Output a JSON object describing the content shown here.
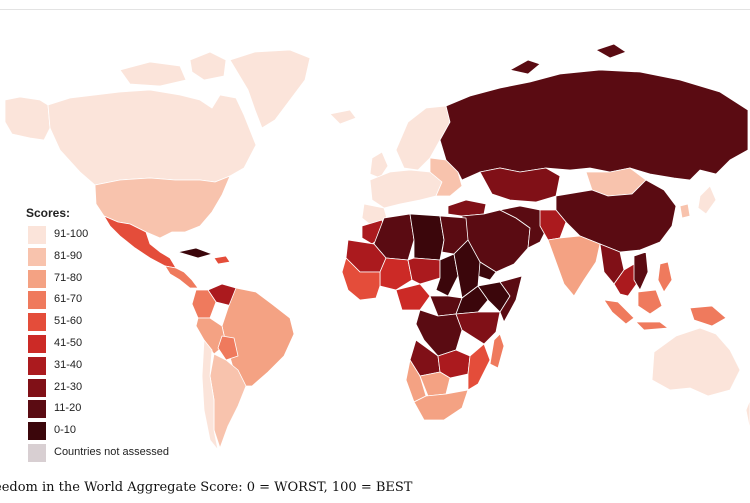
{
  "legend": {
    "title": "Scores:",
    "items": [
      {
        "label": "91-100",
        "color": "#fbe4da"
      },
      {
        "label": "81-90",
        "color": "#f8c3ad"
      },
      {
        "label": "71-80",
        "color": "#f4a283"
      },
      {
        "label": "61-70",
        "color": "#ef7a5d"
      },
      {
        "label": "51-60",
        "color": "#e44d3a"
      },
      {
        "label": "41-50",
        "color": "#cc2a26"
      },
      {
        "label": "31-40",
        "color": "#ab1a1e"
      },
      {
        "label": "21-30",
        "color": "#801017"
      },
      {
        "label": "11-20",
        "color": "#5a0b12"
      },
      {
        "label": "0-10",
        "color": "#3b060b"
      },
      {
        "label": "Countries not assessed",
        "color": "#d8cfd2"
      }
    ]
  },
  "caption": "eedom in the World Aggregate Score: 0 = WORST, 100 = BEST"
}
